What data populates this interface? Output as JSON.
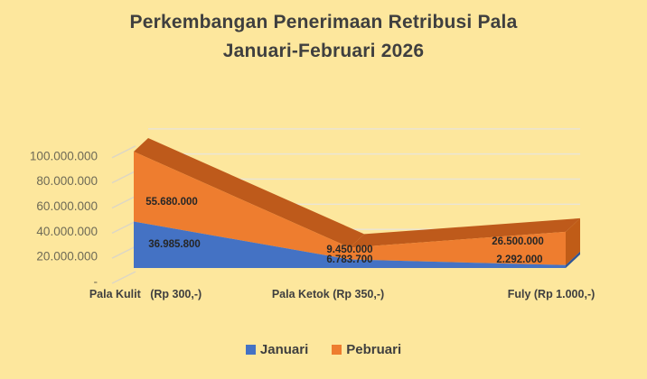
{
  "title": {
    "line1": "Perkembangan Penerimaan Retribusi Pala",
    "line2": "Januari-Februari 2026"
  },
  "chart_data": {
    "type": "area",
    "projection": "3d",
    "stacked": true,
    "title": "Perkembangan Penerimaan Retribusi Pala Januari-Februari 2026",
    "categories": [
      "Pala Kulit   (Rp 300,-)",
      "Pala Ketok (Rp 350,-)",
      "Fuly (Rp 1.000,-)"
    ],
    "series": [
      {
        "name": "Januari",
        "color": "#4472C4",
        "side_color": "#2F5597",
        "values": [
          36985800,
          6783700,
          2292000
        ],
        "labels": [
          "36.985.800",
          "6.783.700",
          "2.292.000"
        ]
      },
      {
        "name": "Pebruari",
        "color": "#EE7D2F",
        "top_color": "#BE5A1B",
        "side_color": "#C05C17",
        "values": [
          55680000,
          9450000,
          26500000
        ],
        "labels": [
          "55.680.000",
          "9.450.000",
          "26.500.000"
        ]
      }
    ],
    "y_axis": {
      "min": 0,
      "max": 100000000,
      "tick_values": [
        0,
        20000000,
        40000000,
        60000000,
        80000000,
        100000000
      ],
      "tick_labels": [
        "-",
        "20.000.000",
        "40.000.000",
        "60.000.000",
        "80.000.000",
        "100.000.000"
      ]
    },
    "legend_position": "bottom",
    "grid": true
  },
  "colors": {
    "background": "#FDE79D",
    "title_text": "#3F3F3F",
    "axis_text": "#6E6A56",
    "category_text": "#3F3F3F",
    "data_label_text": "#262626",
    "gridline": "#EAE5D6",
    "tick": "#DCD6C6"
  }
}
